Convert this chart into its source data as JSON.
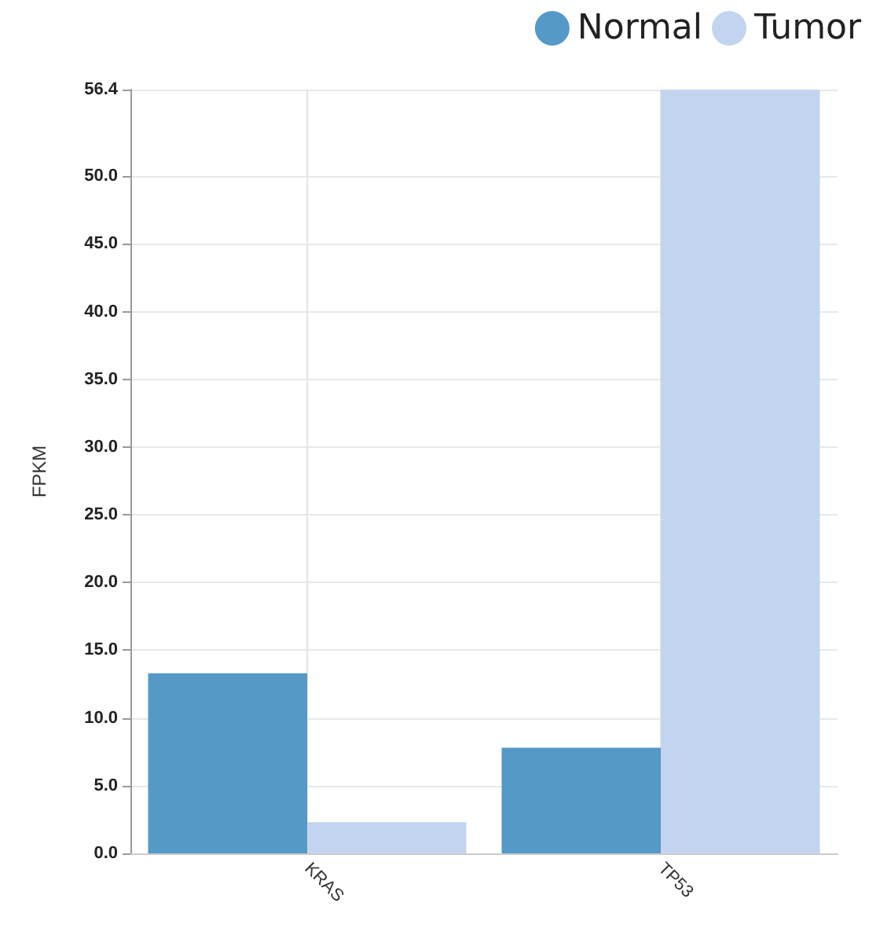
{
  "chart_data": {
    "type": "bar",
    "ylabel": "FPKM",
    "categories": [
      "KRAS",
      "TP53"
    ],
    "series": [
      {
        "name": "Normal",
        "color": "#5499c7",
        "values": [
          13.3,
          7.8
        ]
      },
      {
        "name": "Tumor",
        "color": "#c3d5ee",
        "values": [
          2.3,
          56.4
        ]
      }
    ],
    "ylim": [
      0,
      56.4
    ],
    "yticks": [
      {
        "value": 0,
        "label": "0.0"
      },
      {
        "value": 5,
        "label": "5.0"
      },
      {
        "value": 10,
        "label": "10.0"
      },
      {
        "value": 15,
        "label": "15.0"
      },
      {
        "value": 20,
        "label": "20.0"
      },
      {
        "value": 25,
        "label": "25.0"
      },
      {
        "value": 30,
        "label": "30.0"
      },
      {
        "value": 35,
        "label": "35.0"
      },
      {
        "value": 40,
        "label": "40.0"
      },
      {
        "value": 45,
        "label": "45.0"
      },
      {
        "value": 50,
        "label": "50.0"
      },
      {
        "value": 56.4,
        "label": "56.4"
      }
    ],
    "grid": true,
    "legend": "top right"
  }
}
